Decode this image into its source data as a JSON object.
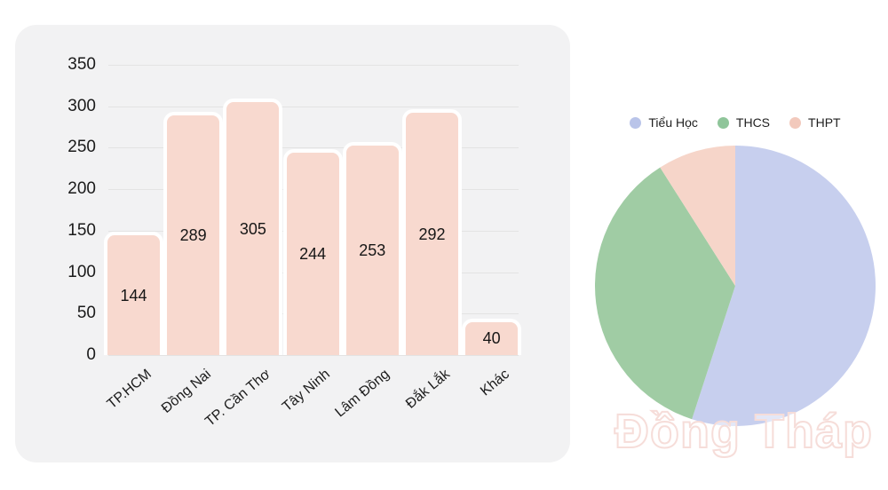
{
  "watermark": {
    "text": "Đồng Tháp"
  },
  "colors": {
    "card_background": "#f2f2f3",
    "gridline": "#e3e3e3",
    "bar_fill": "#f8d9cf",
    "bar_border": "#ffffff",
    "text": "#1f1f1f"
  },
  "chart_data": [
    {
      "type": "bar",
      "title": "",
      "xlabel": "",
      "ylabel": "",
      "categories": [
        "TP.HCM",
        "Đồng Nai",
        "TP. Cần Thơ",
        "Tây Ninh",
        "Lâm Đồng",
        "Đắk Lắk",
        "Khác"
      ],
      "values": [
        144,
        289,
        305,
        244,
        253,
        292,
        40
      ],
      "yticks": [
        0,
        50,
        100,
        150,
        200,
        250,
        300,
        350
      ],
      "ylim": [
        0,
        350
      ],
      "grid": true,
      "bar_color": "#f8d9cf",
      "bar_border_color": "#ffffff",
      "value_label_position": "center-of-bar",
      "x_label_rotation_deg": -40
    },
    {
      "type": "pie",
      "title": "",
      "legend_position": "top",
      "start_angle_deg": 0,
      "direction": "clockwise",
      "slices": [
        {
          "label": "Tiểu Học",
          "percent": 55,
          "color": "#c7cfee",
          "legend_dot_color": "#b9c4e9"
        },
        {
          "label": "THCS",
          "percent": 36,
          "color": "#a0cca4",
          "legend_dot_color": "#8fc59a"
        },
        {
          "label": "THPT",
          "percent": 9,
          "color": "#f6d5c9",
          "legend_dot_color": "#f2c9bc"
        }
      ]
    }
  ]
}
